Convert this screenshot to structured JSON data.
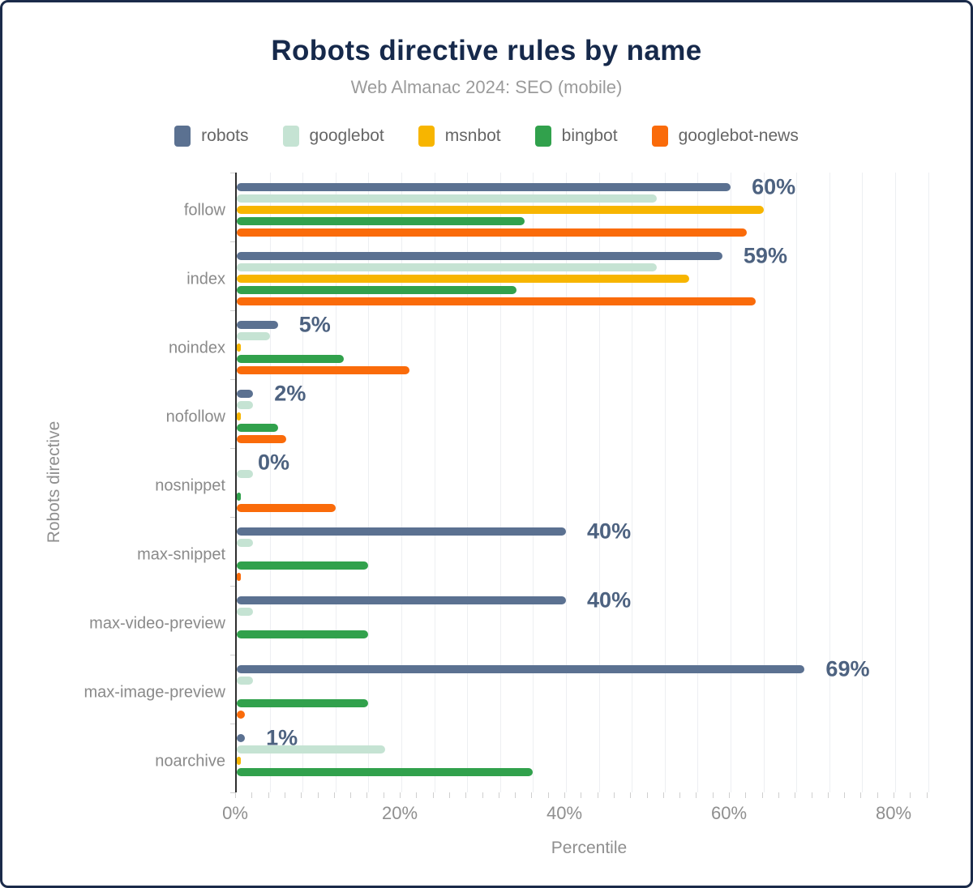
{
  "chart_data": {
    "type": "bar",
    "orientation": "horizontal",
    "title": "Robots directive rules by name",
    "subtitle": "Web Almanac 2024: SEO (mobile)",
    "xlabel": "Percentile",
    "ylabel": "Robots directive",
    "xlim": [
      0,
      86
    ],
    "grid_interval": 4,
    "minor_tick_interval": 2,
    "grid_on": true,
    "legend_position": "top",
    "x_ticks": {
      "labels": [
        "0%",
        "20%",
        "40%",
        "60%",
        "80%"
      ],
      "values": [
        0,
        20,
        40,
        60,
        80
      ]
    },
    "categories": [
      "follow",
      "index",
      "noindex",
      "nofollow",
      "nosnippet",
      "max-snippet",
      "max-video-preview",
      "max-image-preview",
      "noarchive"
    ],
    "series": [
      {
        "name": "robots",
        "color": "#5b7191",
        "values": [
          60,
          59,
          5,
          2,
          0,
          40,
          40,
          69,
          1
        ]
      },
      {
        "name": "googlebot",
        "color": "#c5e3d3",
        "values": [
          51,
          51,
          4,
          2,
          2,
          2,
          2,
          2,
          18
        ]
      },
      {
        "name": "msnbot",
        "color": "#f7b500",
        "values": [
          64,
          55,
          0.5,
          0.5,
          0,
          0,
          0,
          0,
          0.5
        ]
      },
      {
        "name": "bingbot",
        "color": "#31a14c",
        "values": [
          35,
          34,
          13,
          5,
          0.5,
          16,
          16,
          16,
          36
        ]
      },
      {
        "name": "googlebot-news",
        "color": "#fa6b0a",
        "values": [
          62,
          63,
          21,
          6,
          12,
          0.5,
          0,
          1,
          0
        ]
      }
    ],
    "data_labels": {
      "series": "robots",
      "color": "#4d6280",
      "values": [
        "60%",
        "59%",
        "5%",
        "2%",
        "0%",
        "40%",
        "40%",
        "69%",
        "1%"
      ]
    }
  },
  "theme": {
    "title_color": "#16294b",
    "subtitle_color": "#9b9b9b",
    "axis_text_color": "#8f8f8f",
    "legend_text_color": "#666666",
    "grid_color": "#edeff2",
    "axis_line_color": "#2e2e2e",
    "frame_border_color": "#1b2b4a"
  }
}
